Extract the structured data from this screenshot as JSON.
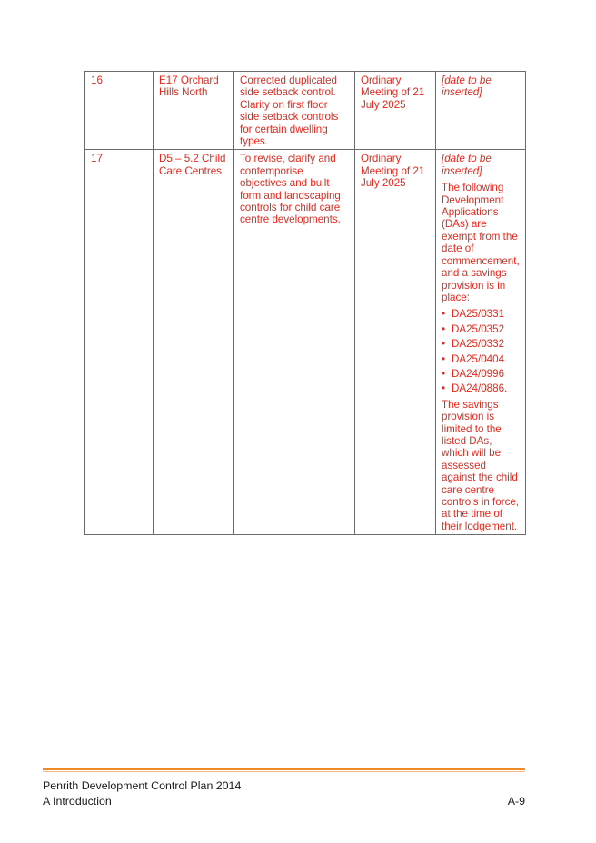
{
  "table": {
    "rows": [
      {
        "num": "16",
        "section": "E17 Orchard Hills North",
        "description": "Corrected duplicated side setback control. Clarity on first floor side setback controls for certain dwelling types.",
        "meeting": "Ordinary Meeting of 21 July 2025",
        "date_text": "[date to be inserted]"
      },
      {
        "num": "17",
        "section": "D5 – 5.2 Child Care Centres",
        "description": "To revise, clarify and contemporise objectives and built form and landscaping controls for child care centre developments.",
        "meeting": "Ordinary Meeting of 21 July 2025",
        "date_text": "[date to be inserted].",
        "exempt_intro": "The following Development Applications (DAs) are exempt from the date of commencement, and a savings provision is in place:",
        "das": [
          "DA25/0331",
          "DA25/0352",
          "DA25/0332",
          "DA25/0404",
          "DA24/0996",
          "DA24/0886."
        ],
        "savings_note": "The savings provision is limited to the listed DAs, which will be assessed against the child care centre controls in force, at the time of their lodgement."
      }
    ]
  },
  "footer": {
    "title": "Penrith Development Control Plan 2014",
    "section": "A Introduction",
    "page": "A-9"
  },
  "colors": {
    "text_red": "#e8271c",
    "footer_rule": "#f08a24"
  }
}
